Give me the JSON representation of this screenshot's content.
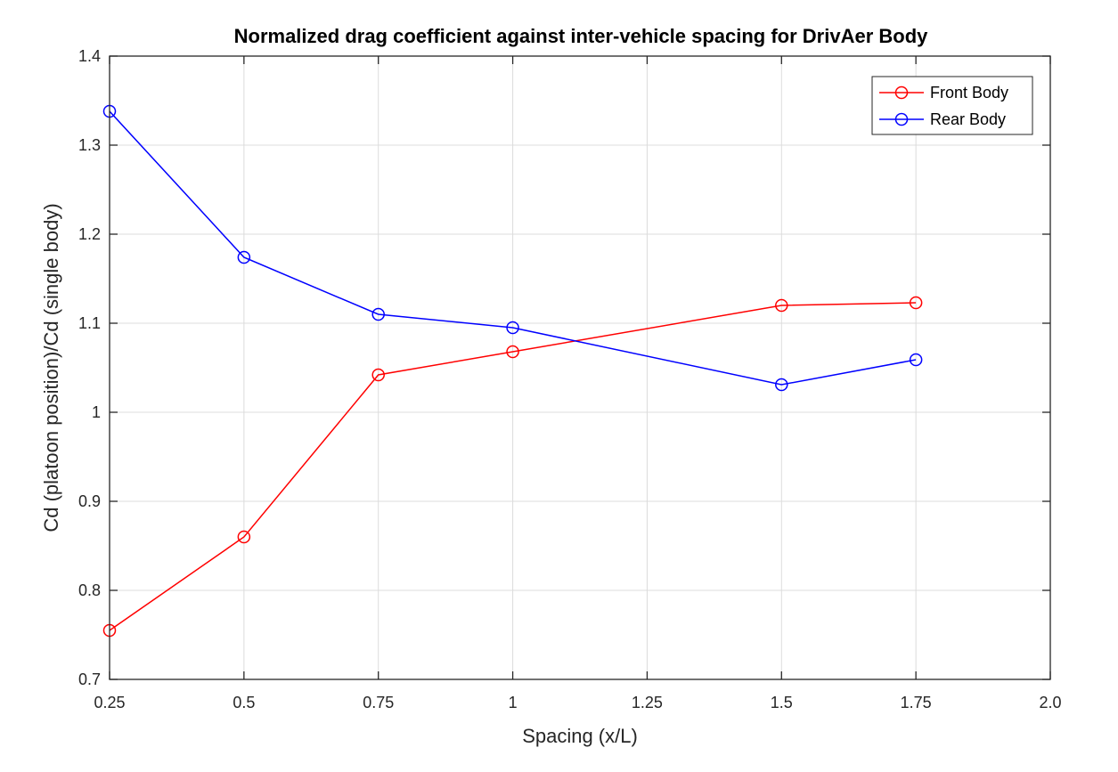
{
  "chart_data": {
    "type": "line",
    "title": "Normalized drag coefficient against inter-vehicle spacing for DrivAer Body",
    "xlabel": "Spacing (x/L)",
    "ylabel": "Cd (platoon position)/Cd (single body)",
    "xlim": [
      0.25,
      2.0
    ],
    "ylim": [
      0.7,
      1.4
    ],
    "x_ticks": [
      0.25,
      0.5,
      0.75,
      1,
      1.25,
      1.5,
      1.75,
      2.0
    ],
    "x_tick_labels": [
      "0.25",
      "0.5",
      "0.75",
      "1",
      "1.25",
      "1.5",
      "1.75",
      "2.0"
    ],
    "y_ticks": [
      0.7,
      0.8,
      0.9,
      1.0,
      1.1,
      1.2,
      1.3,
      1.4
    ],
    "y_tick_labels": [
      "0.7",
      "0.8",
      "0.9",
      "1",
      "1.1",
      "1.2",
      "1.3",
      "1.4"
    ],
    "grid": true,
    "legend_position": "top-right",
    "marker": "circle",
    "series": [
      {
        "name": "Front Body",
        "color": "#ff0000",
        "x": [
          0.25,
          0.5,
          0.75,
          1.0,
          1.5,
          1.75
        ],
        "y": [
          0.755,
          0.86,
          1.042,
          1.068,
          1.12,
          1.123
        ]
      },
      {
        "name": "Rear Body",
        "color": "#0000ff",
        "x": [
          0.25,
          0.5,
          0.75,
          1.0,
          1.5,
          1.75
        ],
        "y": [
          1.338,
          1.174,
          1.11,
          1.095,
          1.031,
          1.059
        ]
      }
    ]
  }
}
